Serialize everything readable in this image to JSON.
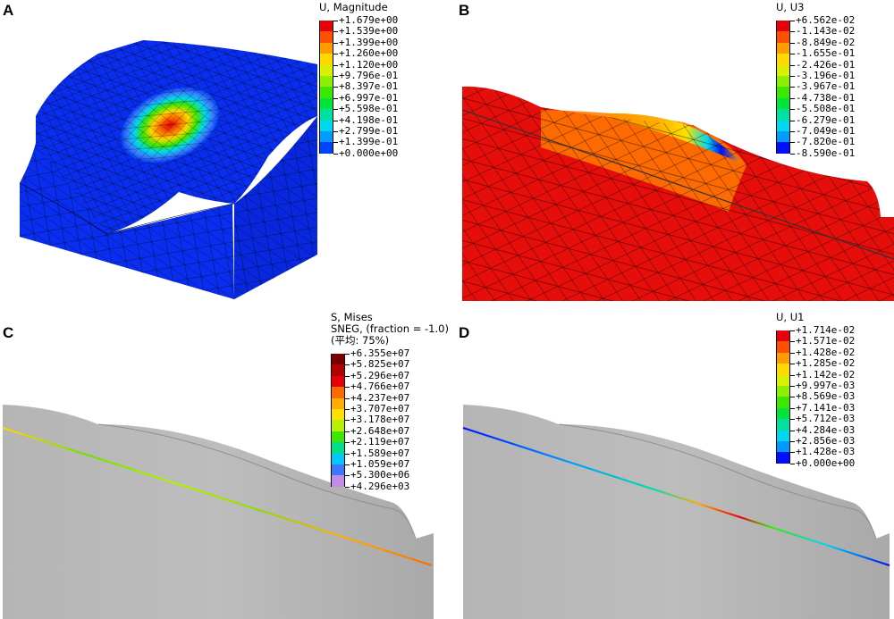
{
  "panels": {
    "a": {
      "label": "A"
    },
    "b": {
      "label": "B"
    },
    "c": {
      "label": "C"
    },
    "d": {
      "label": "D"
    }
  },
  "legends": {
    "a": {
      "title_lines": [
        "U, Magnitude"
      ],
      "values": [
        "+1.679e+00",
        "+1.539e+00",
        "+1.399e+00",
        "+1.260e+00",
        "+1.120e+00",
        "+9.796e-01",
        "+8.397e-01",
        "+6.997e-01",
        "+5.598e-01",
        "+4.198e-01",
        "+2.799e-01",
        "+1.399e-01",
        "+0.000e+00"
      ],
      "colors": [
        "#e8000b",
        "#ff4f00",
        "#ff9d00",
        "#ffd800",
        "#d9f000",
        "#8cf000",
        "#3ce800",
        "#00e43c",
        "#00e0a0",
        "#00d8ef",
        "#009bff",
        "#0043ff"
      ]
    },
    "b": {
      "title_lines": [
        "U, U3"
      ],
      "values": [
        "+6.562e-02",
        "-1.143e-02",
        "-8.849e-02",
        "-1.655e-01",
        "-2.426e-01",
        "-3.196e-01",
        "-3.967e-01",
        "-4.738e-01",
        "-5.508e-01",
        "-6.279e-01",
        "-7.049e-01",
        "-7.820e-01",
        "-8.590e-01"
      ],
      "colors": [
        "#e8000b",
        "#ff4f00",
        "#ff9d00",
        "#ffd800",
        "#d9f000",
        "#8cf000",
        "#3ce800",
        "#00e43c",
        "#00e0a0",
        "#00d8ef",
        "#009bff",
        "#0010ff"
      ]
    },
    "c": {
      "title_lines": [
        "S, Mises",
        "SNEG, (fraction = -1.0)",
        "(平均: 75%)"
      ],
      "values": [
        "+6.355e+07",
        "+5.825e+07",
        "+5.296e+07",
        "+4.766e+07",
        "+4.237e+07",
        "+3.707e+07",
        "+3.178e+07",
        "+2.648e+07",
        "+2.119e+07",
        "+1.589e+07",
        "+1.059e+07",
        "+5.300e+06",
        "+4.296e+03"
      ],
      "colors": [
        "#7a0000",
        "#b30000",
        "#e8000b",
        "#ff6a00",
        "#ffae00",
        "#ffe100",
        "#b8f000",
        "#3ce800",
        "#00e08a",
        "#00c8ff",
        "#3c78ff",
        "#c08ce8"
      ]
    },
    "d": {
      "title_lines": [
        "U, U1"
      ],
      "values": [
        "+1.714e-02",
        "+1.571e-02",
        "+1.428e-02",
        "+1.285e-02",
        "+1.142e-02",
        "+9.997e-03",
        "+8.569e-03",
        "+7.141e-03",
        "+5.712e-03",
        "+4.284e-03",
        "+2.856e-03",
        "+1.428e-03",
        "+0.000e+00"
      ],
      "colors": [
        "#e8000b",
        "#ff4f00",
        "#ff9d00",
        "#ffd800",
        "#d9f000",
        "#8cf000",
        "#3ce800",
        "#00e43c",
        "#00e0a0",
        "#00d8ef",
        "#009bff",
        "#0010ff"
      ]
    }
  }
}
